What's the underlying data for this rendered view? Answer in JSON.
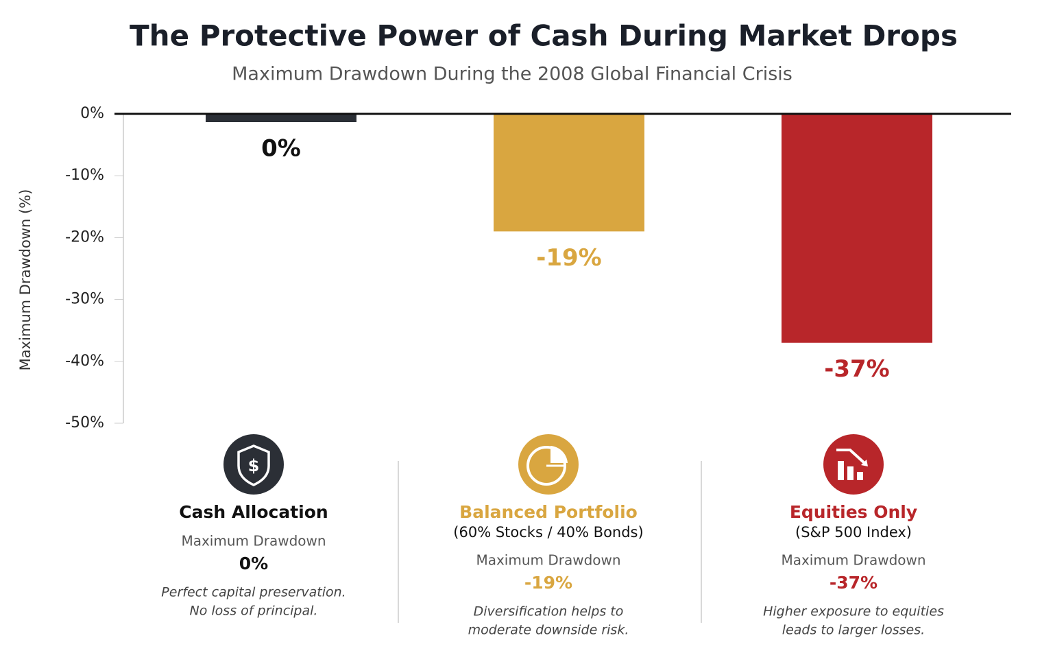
{
  "chart_data": {
    "type": "bar",
    "title": "The Protective Power of Cash During Market Drops",
    "subtitle": "Maximum Drawdown During the 2008 Global Financial Crisis",
    "y_label": "Maximum Drawdown (%)",
    "categories": [
      "Cash Allocation",
      "Balanced Portfolio",
      "Equities Only"
    ],
    "values": [
      0,
      -19,
      -37
    ],
    "value_labels": [
      "0%",
      "-19%",
      "-37%"
    ],
    "colors": [
      "#2b2f36",
      "#d9a640",
      "#b8262a"
    ],
    "ylim": [
      -50,
      0
    ],
    "yticks": [
      {
        "value": 0,
        "label": "0%"
      },
      {
        "value": -10,
        "label": "-10%"
      },
      {
        "value": -20,
        "label": "-20%"
      },
      {
        "value": -30,
        "label": "-30%"
      },
      {
        "value": -40,
        "label": "-40%"
      },
      {
        "value": -50,
        "label": "-50%"
      }
    ],
    "grid": true
  },
  "cards": [
    {
      "metric_label": "Maximum Drawdown",
      "description": [
        "Perfect capital preservation.",
        "No loss of principal."
      ]
    },
    {
      "subtitle": "(60% Stocks / 40% Bonds)",
      "metric_label": "Maximum Drawdown",
      "description": [
        "Diversification helps to",
        "moderate downside risk."
      ]
    },
    {
      "subtitle": "(S&P 500 Index)",
      "metric_label": "Maximum Drawdown",
      "description": [
        "Higher exposure to equities",
        "leads to larger losses."
      ]
    }
  ]
}
